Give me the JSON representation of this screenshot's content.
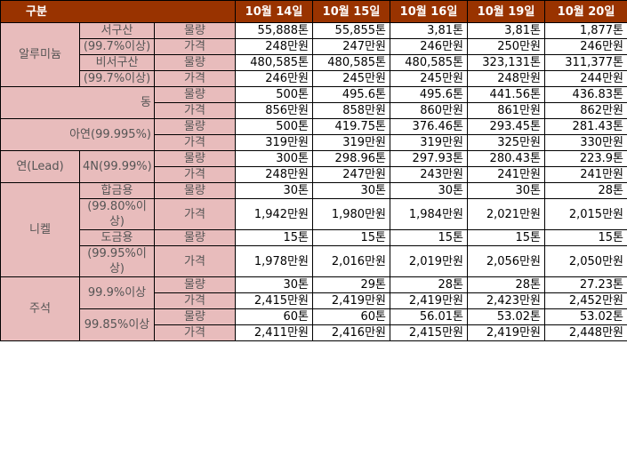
{
  "header": {
    "label": "구분",
    "dates": [
      "10월 14일",
      "10월 15일",
      "10월 16일",
      "10월 19일",
      "10월 20일"
    ]
  },
  "attr": {
    "qty": "물량",
    "price": "가격"
  },
  "groups": {
    "aluminum": "알루미늄",
    "lead": "연(Lead)",
    "nickel": "니켈",
    "tin": "주석"
  },
  "items": {
    "al_west": {
      "name": "서구산",
      "spec": "(99.7%이상)"
    },
    "al_nonwest": {
      "name": "비서구산",
      "spec": "(99.7%이상)"
    },
    "copper": {
      "name": "동"
    },
    "zinc": {
      "name": "아연(99.995%)"
    },
    "lead4n": {
      "name": "4N(99.99%)"
    },
    "ni_alloy": {
      "name": "합금용",
      "spec": "(99.80%이상)"
    },
    "ni_plating": {
      "name": "도금용",
      "spec": "(99.95%이상)"
    },
    "tin_999": {
      "name": "99.9%이상"
    },
    "tin_9985": {
      "name": "99.85%이상"
    }
  },
  "rows": {
    "al_west_qty": [
      "55,888톤",
      "55,855톤",
      "3,81톤",
      "3,81톤",
      "1,877톤"
    ],
    "al_west_price": [
      "248만원",
      "247만원",
      "246만원",
      "250만원",
      "246만원"
    ],
    "al_nonwest_qty": [
      "480,585톤",
      "480,585톤",
      "480,585톤",
      "323,131톤",
      "311,377톤"
    ],
    "al_nonwest_price": [
      "246만원",
      "245만원",
      "245만원",
      "248만원",
      "244만원"
    ],
    "copper_qty": [
      "500톤",
      "495.6톤",
      "495.6톤",
      "441.56톤",
      "436.83톤"
    ],
    "copper_price": [
      "856만원",
      "858만원",
      "860만원",
      "861만원",
      "862만원"
    ],
    "zinc_qty": [
      "500톤",
      "419.75톤",
      "376.46톤",
      "293.45톤",
      "281.43톤"
    ],
    "zinc_price": [
      "319만원",
      "319만원",
      "319만원",
      "325만원",
      "330만원"
    ],
    "lead_qty": [
      "300톤",
      "298.96톤",
      "297.93톤",
      "280.43톤",
      "223.9톤"
    ],
    "lead_price": [
      "248만원",
      "247만원",
      "243만원",
      "241만원",
      "241만원"
    ],
    "ni_alloy_qty": [
      "30톤",
      "30톤",
      "30톤",
      "30톤",
      "28톤"
    ],
    "ni_alloy_price": [
      "1,942만원",
      "1,980만원",
      "1,984만원",
      "2,021만원",
      "2,015만원"
    ],
    "ni_plating_qty": [
      "15톤",
      "15톤",
      "15톤",
      "15톤",
      "15톤"
    ],
    "ni_plating_price": [
      "1,978만원",
      "2,016만원",
      "2,019만원",
      "2,056만원",
      "2,050만원"
    ],
    "tin_999_qty": [
      "30톤",
      "29톤",
      "28톤",
      "28톤",
      "27.23톤"
    ],
    "tin_999_price": [
      "2,415만원",
      "2,419만원",
      "2,419만원",
      "2,423만원",
      "2,452만원"
    ],
    "tin_9985_qty": [
      "60톤",
      "60톤",
      "56.01톤",
      "53.02톤",
      "53.02톤"
    ],
    "tin_9985_price": [
      "2,411만원",
      "2,416만원",
      "2,415만원",
      "2,419만원",
      "2,448만원"
    ]
  },
  "colors": {
    "header_bg": "#993300",
    "header_text": "#ffffff",
    "label_bg": "#e8bcbc",
    "label_text": "#555555",
    "grid": "#000000"
  }
}
